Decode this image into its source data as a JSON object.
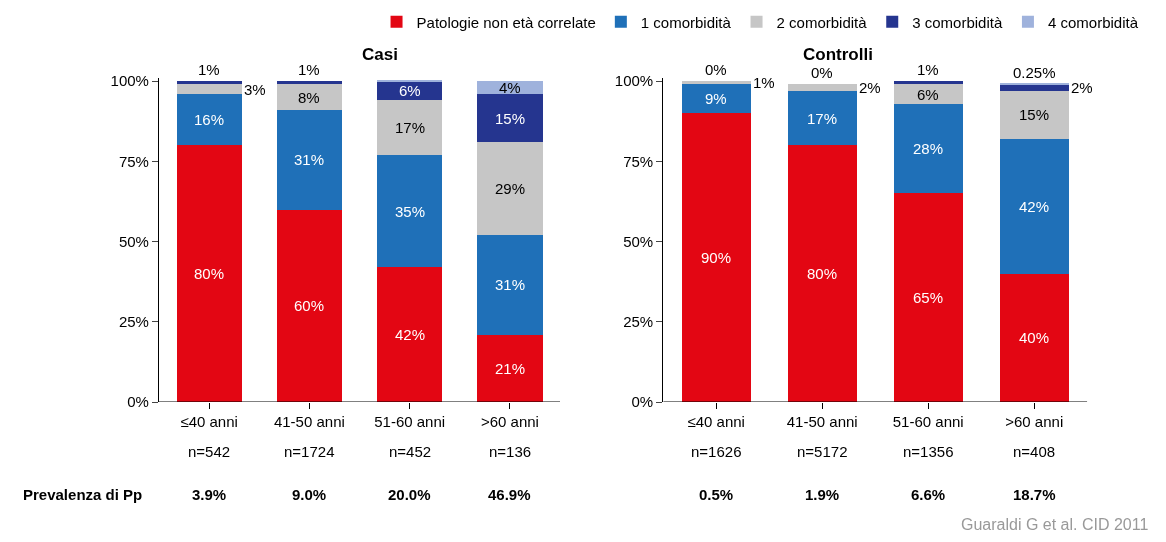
{
  "chart_data": [
    {
      "type": "bar",
      "stacked": true,
      "title": "Casi",
      "categories": [
        "≤40 anni",
        "41-50 anni",
        "51-60 anni",
        ">60 anni"
      ],
      "ylim": [
        0,
        101
      ],
      "yticks": [
        {
          "value": 0,
          "label": "0%"
        },
        {
          "value": 25,
          "label": "25%"
        },
        {
          "value": 50,
          "label": "50%"
        },
        {
          "value": 75,
          "label": "75%"
        },
        {
          "value": 100,
          "label": "100%"
        }
      ],
      "legend": "top",
      "series": [
        {
          "name": "Patologie non età correlate",
          "color": "#e30613",
          "values": [
            80,
            60,
            42,
            21
          ],
          "value_labels": [
            "80%",
            "60%",
            "42%",
            "21%"
          ]
        },
        {
          "name": "1 comorbidità",
          "color": "#1f70b8",
          "values": [
            16,
            31,
            35,
            31
          ],
          "value_labels": [
            "16%",
            "31%",
            "35%",
            "31%"
          ]
        },
        {
          "name": "2 comorbidità",
          "color": "#c6c6c6",
          "values": [
            3,
            8,
            17,
            29
          ],
          "value_labels": [
            "3%",
            "8%",
            "17%",
            "29%"
          ]
        },
        {
          "name": "3 comorbidità",
          "color": "#25358f",
          "values": [
            1,
            1,
            6,
            15
          ],
          "value_labels": [
            "1%",
            "1%",
            "6%",
            "15%"
          ]
        },
        {
          "name": "4 comorbidità",
          "color": "#9fb2dc",
          "values": [
            null,
            null,
            0.5,
            4
          ],
          "value_labels": [
            null,
            null,
            null,
            "4%"
          ]
        }
      ],
      "annotations": [
        "n=542",
        "n=1724",
        "n=452",
        "n=136",
        "3.9%",
        "9.0%",
        "20.0%",
        "46.9%",
        "Prevalenza di Pp"
      ]
    },
    {
      "type": "bar",
      "stacked": true,
      "title": "Controlli",
      "categories": [
        "≤40 anni",
        "41-50 anni",
        "51-60 anni",
        ">60 anni"
      ],
      "ylim": [
        0,
        101
      ],
      "yticks": [
        {
          "value": 0,
          "label": "0%"
        },
        {
          "value": 25,
          "label": "25%"
        },
        {
          "value": 50,
          "label": "50%"
        },
        {
          "value": 75,
          "label": "75%"
        },
        {
          "value": 100,
          "label": "100%"
        }
      ],
      "legend": false,
      "series": [
        {
          "color": "#e30613",
          "values": [
            90,
            80,
            65,
            40
          ],
          "value_labels": [
            "90%",
            "80%",
            "65%",
            "40%"
          ]
        },
        {
          "color": "#1f70b8",
          "values": [
            9,
            17,
            28,
            42
          ],
          "value_labels": [
            "9%",
            "17%",
            "28%",
            "42%"
          ]
        },
        {
          "color": "#c6c6c6",
          "values": [
            1,
            2,
            6,
            15
          ],
          "value_labels": [
            "1%",
            "2%",
            "6%",
            "15%"
          ]
        },
        {
          "color": "#25358f",
          "values": [
            0,
            0,
            1,
            2
          ],
          "value_labels": [
            "0%",
            "0%",
            "1%",
            "2%"
          ]
        },
        {
          "color": "#9fb2dc",
          "values": [
            null,
            null,
            null,
            0.25
          ],
          "value_labels": [
            null,
            null,
            null,
            "0.25%"
          ]
        }
      ],
      "annotations": [
        "n=1626",
        "n=5172",
        "n=1356",
        "n=408",
        "0.5%",
        "1.9%",
        "6.6%",
        "18.7%",
        "Guaraldi G et al. CID 2011"
      ]
    }
  ]
}
